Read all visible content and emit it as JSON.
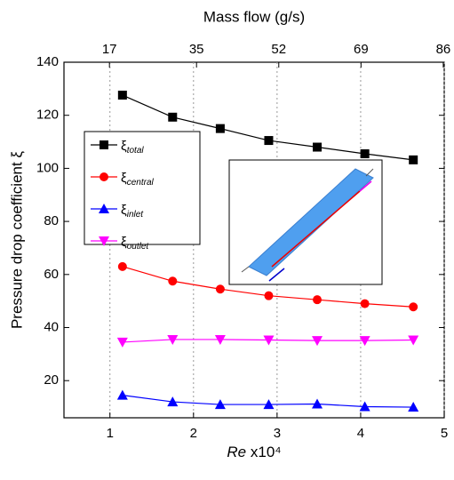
{
  "chart_data": {
    "type": "line",
    "x_label": "Re x10⁴",
    "x2_label": "Mass flow (g/s)",
    "y_label": "Pressure drop coefficient ξ",
    "x": [
      1.15,
      1.75,
      2.32,
      2.9,
      3.48,
      4.05,
      4.63
    ],
    "series": [
      {
        "name": "ξtotal",
        "color": "#000000",
        "marker": "square",
        "values": [
          127.6,
          119.3,
          115,
          110.5,
          108,
          105.5,
          103.2
        ]
      },
      {
        "name": "ξcentral",
        "color": "#ff0000",
        "marker": "circle",
        "values": [
          63,
          57.5,
          54.5,
          52,
          50.5,
          49,
          47.8
        ]
      },
      {
        "name": "ξinlet",
        "color": "#0000ff",
        "marker": "triangle-up",
        "values": [
          14.5,
          12,
          11,
          11,
          11.2,
          10.2,
          10
        ]
      },
      {
        "name": "ξoutlet",
        "color": "#ff00ff",
        "marker": "triangle-down",
        "values": [
          34.5,
          35.5,
          35.5,
          35.3,
          35.1,
          35.1,
          35.3
        ]
      }
    ],
    "xlim": [
      0.45,
      5
    ],
    "xticks": [
      1,
      2,
      3,
      4,
      5
    ],
    "x2lim": [
      7.6,
      86.2
    ],
    "x2ticks": [
      17,
      35,
      52,
      69,
      86
    ],
    "ylim": [
      6,
      140
    ],
    "yticks": [
      20,
      40,
      60,
      80,
      100,
      120,
      140
    ],
    "grid": true
  }
}
